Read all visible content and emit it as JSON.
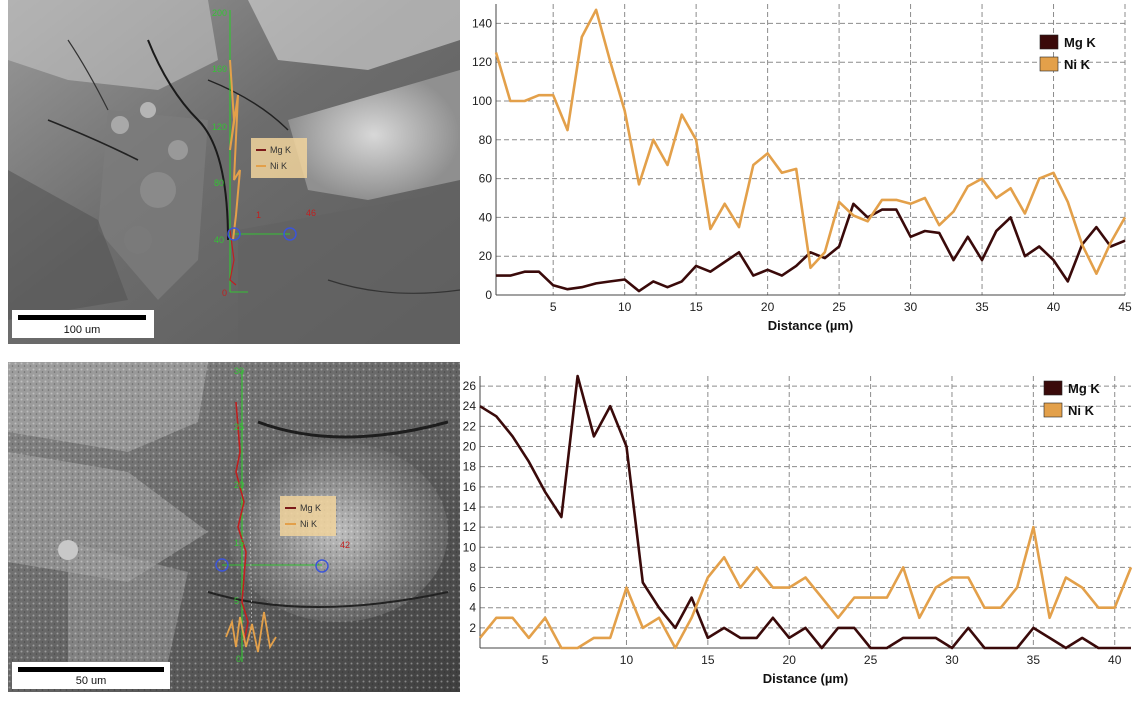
{
  "colors": {
    "mg": "#3a0a0a",
    "ni": "#e3a04a",
    "grid": "#8c8c8c",
    "overlay_green": "#35c235",
    "overlay_blue": "#3c55d8",
    "overlay_red": "#c02020"
  },
  "images": [
    {
      "scale_bar": "100 um",
      "overlay_legend": [
        "Mg K",
        "Ni K"
      ],
      "overlay_axis_ticks": [
        "200",
        "160",
        "120",
        "80",
        "40",
        "0"
      ],
      "point_labels": [
        "1",
        "46"
      ]
    },
    {
      "scale_bar": "50 um",
      "overlay_legend": [
        "Mg K",
        "Ni K"
      ],
      "overlay_axis_ticks": [
        "30",
        "25",
        "20",
        "15",
        "10",
        "5",
        "0"
      ],
      "point_labels": [
        "42"
      ]
    }
  ],
  "chart_data": [
    {
      "type": "line",
      "xlabel": "Distance (µm)",
      "ylabel": "",
      "xlim": [
        1,
        45
      ],
      "ylim": [
        0,
        150
      ],
      "xticks": [
        5,
        10,
        15,
        20,
        25,
        30,
        35,
        40,
        45
      ],
      "yticks": [
        0,
        20,
        40,
        60,
        80,
        100,
        120,
        140
      ],
      "grid": true,
      "legend_position": "top-right",
      "x": [
        1,
        2,
        3,
        4,
        5,
        6,
        7,
        8,
        9,
        10,
        11,
        12,
        13,
        14,
        15,
        16,
        17,
        18,
        19,
        20,
        21,
        22,
        23,
        24,
        25,
        26,
        27,
        28,
        29,
        30,
        31,
        32,
        33,
        34,
        35,
        36,
        37,
        38,
        39,
        40,
        41,
        42,
        43,
        44,
        45
      ],
      "series": [
        {
          "name": "Mg K",
          "color": "#3a0a0a",
          "values": [
            10,
            10,
            12,
            12,
            5,
            3,
            4,
            6,
            7,
            8,
            2,
            7,
            4,
            7,
            15,
            12,
            17,
            22,
            10,
            13,
            10,
            15,
            22,
            19,
            25,
            47,
            40,
            44,
            44,
            30,
            33,
            32,
            18,
            30,
            18,
            33,
            40,
            20,
            25,
            18,
            7,
            26,
            35,
            25,
            28
          ]
        },
        {
          "name": "Ni K",
          "color": "#e3a04a",
          "values": [
            125,
            100,
            100,
            103,
            103,
            85,
            133,
            147,
            120,
            95,
            57,
            80,
            67,
            93,
            80,
            34,
            47,
            35,
            67,
            73,
            63,
            65,
            14,
            22,
            48,
            41,
            38,
            49,
            49,
            47,
            50,
            36,
            43,
            56,
            60,
            50,
            55,
            42,
            60,
            63,
            48,
            26,
            11,
            27,
            40
          ]
        }
      ]
    },
    {
      "type": "line",
      "xlabel": "Distance (µm)",
      "ylabel": "",
      "xlim": [
        1,
        41
      ],
      "ylim": [
        0,
        27
      ],
      "xticks": [
        5,
        10,
        15,
        20,
        25,
        30,
        35,
        40
      ],
      "yticks": [
        2,
        4,
        6,
        8,
        10,
        12,
        14,
        16,
        18,
        20,
        22,
        24,
        26
      ],
      "grid": true,
      "legend_position": "top-right",
      "x": [
        1,
        2,
        3,
        4,
        5,
        6,
        7,
        8,
        9,
        10,
        11,
        12,
        13,
        14,
        15,
        16,
        17,
        18,
        19,
        20,
        21,
        22,
        23,
        24,
        25,
        26,
        27,
        28,
        29,
        30,
        31,
        32,
        33,
        34,
        35,
        36,
        37,
        38,
        39,
        40,
        41
      ],
      "series": [
        {
          "name": "Mg K",
          "color": "#3a0a0a",
          "values": [
            24,
            23,
            21,
            18.5,
            15.5,
            13,
            27,
            21,
            24,
            20,
            6.5,
            4,
            2,
            5,
            1,
            2,
            1,
            1,
            3,
            1,
            2,
            0,
            2,
            2,
            0,
            0,
            1,
            1,
            1,
            0,
            2,
            0,
            0,
            0,
            2,
            1,
            0,
            1,
            0,
            0,
            0
          ]
        },
        {
          "name": "Ni K",
          "color": "#e3a04a",
          "values": [
            1,
            3,
            3,
            1,
            3,
            0,
            0,
            1,
            1,
            6,
            2,
            3,
            0,
            3,
            7,
            9,
            6,
            8,
            6,
            6,
            7,
            5,
            3,
            5,
            5,
            5,
            8,
            3,
            6,
            7,
            7,
            4,
            4,
            6,
            12,
            3,
            7,
            6,
            4,
            4,
            8
          ]
        }
      ]
    }
  ]
}
